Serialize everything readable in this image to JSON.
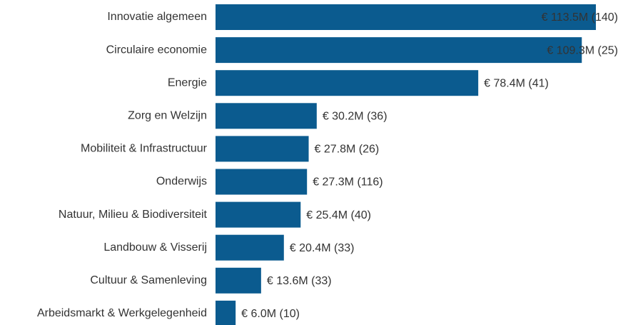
{
  "chart_data": {
    "type": "bar",
    "orientation": "horizontal",
    "color": "#0b5b8f",
    "categories": [
      "Innovatie algemeen",
      "Circulaire economie",
      "Energie",
      "Zorg en Welzijn",
      "Mobiliteit & Infrastructuur",
      "Onderwijs",
      "Natuur, Milieu & Biodiversiteit",
      "Landbouw & Visserij",
      "Cultuur & Samenleving",
      "Arbeidsmarkt & Werkgelegenheid"
    ],
    "values": [
      113.5,
      109.3,
      78.4,
      30.2,
      27.8,
      27.3,
      25.4,
      20.4,
      13.6,
      6.0
    ],
    "value_labels": [
      "€ 113.5M (140)",
      "€ 109.3M (25)",
      "€ 78.4M (41)",
      "€ 30.2M (36)",
      "€ 27.8M (26)",
      "€ 27.3M (116)",
      "€ 25.4M (40)",
      "€ 20.4M (33)",
      "€ 13.6M (33)",
      "€ 6.0M (10)"
    ]
  }
}
